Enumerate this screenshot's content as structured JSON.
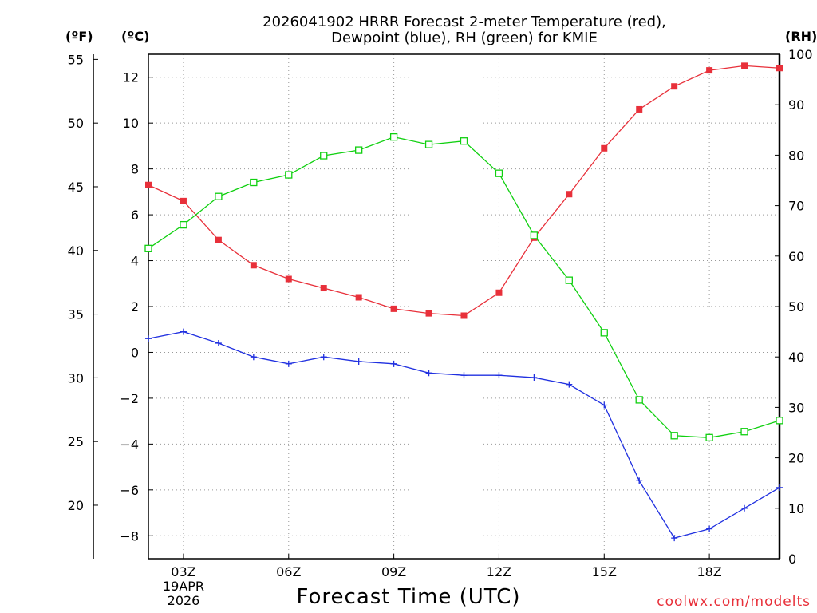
{
  "chart_data": {
    "type": "line",
    "title_line1": "2026041902 HRRR Forecast 2-meter Temperature (red),",
    "title_line2": "Dewpoint (blue), RH (green) for KMIE",
    "xlabel": "Forecast Time (UTC)",
    "date_label": [
      "19APR",
      "2026"
    ],
    "credit": "coolwx.com/modelts",
    "unit_labels": {
      "fahrenheit": "(ºF)",
      "celsius": "(ºC)",
      "rh": "(RH)"
    },
    "x": [
      2,
      3,
      4,
      5,
      6,
      7,
      8,
      9,
      10,
      11,
      12,
      13,
      14,
      15,
      16,
      17,
      18,
      19,
      20
    ],
    "xlim": [
      2,
      20
    ],
    "xticks": [
      {
        "value": 3,
        "label": "03Z"
      },
      {
        "value": 6,
        "label": "06Z"
      },
      {
        "value": 9,
        "label": "09Z"
      },
      {
        "value": 12,
        "label": "12Z"
      },
      {
        "value": 15,
        "label": "15Z"
      },
      {
        "value": 18,
        "label": "18Z"
      }
    ],
    "celsius_axis": {
      "range": [
        -9,
        13
      ],
      "ticks": [
        -8,
        -6,
        -4,
        -2,
        0,
        2,
        4,
        6,
        8,
        10,
        12
      ]
    },
    "fahrenheit_axis": {
      "range": [
        15.8,
        55.4
      ],
      "ticks": [
        20,
        25,
        30,
        35,
        40,
        45,
        50,
        55
      ]
    },
    "rh_axis": {
      "range": [
        0,
        100
      ],
      "ticks": [
        0,
        10,
        20,
        30,
        40,
        50,
        60,
        70,
        80,
        90,
        100
      ]
    },
    "series": [
      {
        "name": "Temperature",
        "axis": "celsius",
        "color": "#e8303a",
        "marker": "filled-square",
        "values": [
          7.3,
          6.6,
          4.9,
          3.8,
          3.2,
          2.8,
          2.4,
          1.9,
          1.7,
          1.6,
          2.6,
          5.0,
          6.9,
          8.9,
          10.6,
          11.6,
          12.3,
          12.5,
          12.4
        ]
      },
      {
        "name": "Dewpoint",
        "axis": "celsius",
        "color": "#2030e0",
        "marker": "plus",
        "values": [
          0.6,
          0.9,
          0.4,
          -0.2,
          -0.5,
          -0.2,
          -0.4,
          -0.5,
          -0.9,
          -1.0,
          -1.0,
          -1.1,
          -1.4,
          -2.3,
          -5.6,
          -8.1,
          -7.7,
          -6.8,
          -5.9
        ]
      },
      {
        "name": "RH",
        "axis": "rh",
        "color": "#10d010",
        "marker": "open-square",
        "values": [
          61.5,
          66.2,
          71.8,
          74.6,
          76.1,
          79.9,
          81.0,
          83.6,
          82.1,
          82.8,
          76.4,
          64.1,
          55.2,
          44.8,
          31.5,
          24.4,
          24.0,
          25.2,
          27.4
        ]
      }
    ]
  }
}
